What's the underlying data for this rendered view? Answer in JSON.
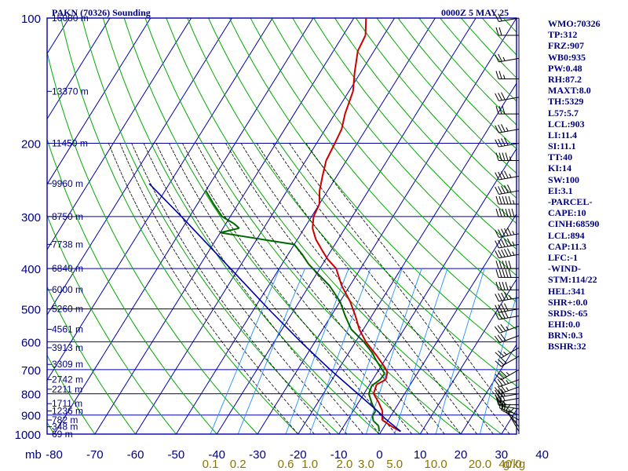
{
  "header": {
    "title": "PAKN (70326) Sounding",
    "valid": "0000Z  5 MAY 25"
  },
  "colors": {
    "frame": "#0000aa",
    "grid": "#0000aa",
    "isotherms": "#0000aa",
    "dry_adiabats": "#00aa00",
    "moist_adiabats": "#000000",
    "mixing_ratio": "#2090ff",
    "temperature": "#cc0000",
    "dewpoint": "#006600",
    "parcel": "#0000aa",
    "axis_text": "#000080",
    "mixing_ratio_text": "#8b7500",
    "wind": "#000000"
  },
  "indices": [
    "WMO:70326",
    "TP:312",
    "FRZ:907",
    "WB0:935",
    "PW:0.48",
    "RH:87.2",
    "MAXT:8.0",
    "TH:5329",
    "L57:5.7",
    "LCL:903",
    "LI:11.4",
    "SI:11.1",
    "TT:40",
    "KI:14",
    "SW:100",
    "EI:3.1",
    "-PARCEL-",
    "CAPE:10",
    "CINH:68590",
    "LCL:894",
    "CAP:11.3",
    "LFC:-1",
    "-WIND-",
    "STM:114/22",
    "HEL:341",
    "SHR+:0.0",
    "SRDS:-65",
    "EHI:0.0",
    "BRN:0.3",
    "BSHR:32"
  ],
  "chart_data": {
    "type": "skew-t",
    "xlabel": "",
    "ylabel": "mb",
    "y_scale": "log",
    "ylim": [
      1000,
      100
    ],
    "xlim": [
      -80,
      0
    ],
    "pressure_ticks": [
      100,
      200,
      300,
      400,
      500,
      600,
      700,
      800,
      900,
      1000
    ],
    "temperature_ticks": [
      -80,
      -70,
      -60,
      -50,
      -40,
      -30,
      -20,
      -10,
      0,
      10,
      20,
      30,
      40
    ],
    "temperature_tick_labels": [
      "-80",
      "-70",
      "-60",
      "-50",
      "-40",
      "-30",
      "-20",
      "-10",
      "0",
      "10",
      "20",
      "30",
      "40"
    ],
    "isotherm_step": 10,
    "mixing_ratio_labels": [
      {
        "label": "0.1",
        "value": 0.1
      },
      {
        "label": "0.2",
        "value": 0.2
      },
      {
        "label": "0.6",
        "value": 0.6
      },
      {
        "label": "1.0",
        "value": 1.0
      },
      {
        "label": "2.0",
        "value": 2.0
      },
      {
        "label": "3.0",
        "value": 3.0
      },
      {
        "label": "5.0",
        "value": 5.0
      },
      {
        "label": "10.0",
        "value": 10.0
      },
      {
        "label": "20.0",
        "value": 20.0
      },
      {
        "label": "40.0",
        "value": 40.0
      }
    ],
    "mixing_ratio_unit": "g/kg",
    "heights": [
      {
        "p": 1000,
        "label": "69 m"
      },
      {
        "p": 960,
        "label": "348 m"
      },
      {
        "p": 925,
        "label": "782 m"
      },
      {
        "p": 880,
        "label": "1236 m"
      },
      {
        "p": 845,
        "label": "1711 m"
      },
      {
        "p": 780,
        "label": "2211 m"
      },
      {
        "p": 740,
        "label": "2742 m"
      },
      {
        "p": 680,
        "label": "3309 m"
      },
      {
        "p": 620,
        "label": "3913 m"
      },
      {
        "p": 560,
        "label": "4561 m"
      },
      {
        "p": 500,
        "label": "5260 m"
      },
      {
        "p": 450,
        "label": "6000 m"
      },
      {
        "p": 400,
        "label": "6840 m"
      },
      {
        "p": 350,
        "label": "7738 m"
      },
      {
        "p": 300,
        "label": "8750 m"
      },
      {
        "p": 250,
        "label": "9960 m"
      },
      {
        "p": 200,
        "label": "11450 m"
      },
      {
        "p": 150,
        "label": "13370 m"
      },
      {
        "p": 100,
        "label": "16080 m"
      }
    ],
    "series": [
      {
        "key": "temperature",
        "points": [
          {
            "p": 985,
            "t": 4.8
          },
          {
            "p": 960,
            "t": 2.0
          },
          {
            "p": 925,
            "t": -1.5
          },
          {
            "p": 880,
            "t": -2.8
          },
          {
            "p": 840,
            "t": -5.0
          },
          {
            "p": 800,
            "t": -7.6
          },
          {
            "p": 760,
            "t": -8.3
          },
          {
            "p": 740,
            "t": -6.8
          },
          {
            "p": 710,
            "t": -7.5
          },
          {
            "p": 690,
            "t": -9.0
          },
          {
            "p": 650,
            "t": -12.5
          },
          {
            "p": 600,
            "t": -17.5
          },
          {
            "p": 560,
            "t": -21.0
          },
          {
            "p": 520,
            "t": -24.0
          },
          {
            "p": 480,
            "t": -27.5
          },
          {
            "p": 440,
            "t": -32.0
          },
          {
            "p": 400,
            "t": -36.0
          },
          {
            "p": 380,
            "t": -39.5
          },
          {
            "p": 360,
            "t": -42.5
          },
          {
            "p": 340,
            "t": -45.5
          },
          {
            "p": 320,
            "t": -48.0
          },
          {
            "p": 300,
            "t": -49.5
          },
          {
            "p": 280,
            "t": -50.0
          },
          {
            "p": 260,
            "t": -52.0
          },
          {
            "p": 240,
            "t": -53.5
          },
          {
            "p": 220,
            "t": -55.0
          },
          {
            "p": 200,
            "t": -55.5
          },
          {
            "p": 185,
            "t": -56.0
          },
          {
            "p": 170,
            "t": -57.5
          },
          {
            "p": 150,
            "t": -59.0
          },
          {
            "p": 135,
            "t": -61.5
          },
          {
            "p": 120,
            "t": -64.0
          },
          {
            "p": 110,
            "t": -64.5
          },
          {
            "p": 100,
            "t": -67.0
          }
        ]
      },
      {
        "key": "dewpoint",
        "points": [
          {
            "p": 985,
            "t": -0.5
          },
          {
            "p": 955,
            "t": -1.5
          },
          {
            "p": 930,
            "t": -3.5
          },
          {
            "p": 905,
            "t": -4.5
          },
          {
            "p": 880,
            "t": -4.5
          },
          {
            "p": 845,
            "t": -6.5
          },
          {
            "p": 800,
            "t": -8.8
          },
          {
            "p": 765,
            "t": -9.3
          },
          {
            "p": 740,
            "t": -8.2
          },
          {
            "p": 715,
            "t": -8.0
          },
          {
            "p": 690,
            "t": -10.0
          },
          {
            "p": 660,
            "t": -12.5
          },
          {
            "p": 640,
            "t": -14.0
          },
          {
            "p": 600,
            "t": -18.0
          },
          {
            "p": 560,
            "t": -23.0
          },
          {
            "p": 520,
            "t": -26.5
          },
          {
            "p": 480,
            "t": -30.0
          },
          {
            "p": 440,
            "t": -35.0
          },
          {
            "p": 410,
            "t": -40.0
          },
          {
            "p": 390,
            "t": -43.5
          },
          {
            "p": 370,
            "t": -46.5
          },
          {
            "p": 350,
            "t": -50.0
          },
          {
            "p": 340,
            "t": -59.0
          },
          {
            "p": 328,
            "t": -70.0
          },
          {
            "p": 320,
            "t": -66.0
          },
          {
            "p": 312,
            "t": -68.0
          },
          {
            "p": 300,
            "t": -72.0
          },
          {
            "p": 280,
            "t": -76.0
          },
          {
            "p": 260,
            "t": -80.0
          }
        ]
      },
      {
        "key": "parcel",
        "points": [
          {
            "p": 985,
            "t": 4.8
          },
          {
            "p": 920,
            "t": -0.8
          },
          {
            "p": 880,
            "t": -4.0
          },
          {
            "p": 800,
            "t": -11.5
          },
          {
            "p": 700,
            "t": -22.0
          },
          {
            "p": 600,
            "t": -33.5
          },
          {
            "p": 500,
            "t": -46.5
          },
          {
            "p": 400,
            "t": -62.0
          },
          {
            "p": 300,
            "t": -82.0
          },
          {
            "p": 250,
            "t": -95.0
          }
        ]
      }
    ],
    "wind_barbs": [
      {
        "p": 985,
        "dir": 330,
        "spd": 10
      },
      {
        "p": 960,
        "dir": 320,
        "spd": 15
      },
      {
        "p": 925,
        "dir": 300,
        "spd": 20
      },
      {
        "p": 900,
        "dir": 290,
        "spd": 20
      },
      {
        "p": 870,
        "dir": 280,
        "spd": 25
      },
      {
        "p": 850,
        "dir": 270,
        "spd": 25
      },
      {
        "p": 820,
        "dir": 260,
        "spd": 30
      },
      {
        "p": 800,
        "dir": 260,
        "spd": 30
      },
      {
        "p": 770,
        "dir": 250,
        "spd": 35
      },
      {
        "p": 740,
        "dir": 250,
        "spd": 35
      },
      {
        "p": 700,
        "dir": 240,
        "spd": 35
      },
      {
        "p": 650,
        "dir": 240,
        "spd": 30
      },
      {
        "p": 620,
        "dir": 240,
        "spd": 25
      },
      {
        "p": 580,
        "dir": 250,
        "spd": 30
      },
      {
        "p": 550,
        "dir": 250,
        "spd": 35
      },
      {
        "p": 520,
        "dir": 260,
        "spd": 40
      },
      {
        "p": 500,
        "dir": 260,
        "spd": 40
      },
      {
        "p": 470,
        "dir": 260,
        "spd": 45
      },
      {
        "p": 450,
        "dir": 270,
        "spd": 45
      },
      {
        "p": 420,
        "dir": 270,
        "spd": 50
      },
      {
        "p": 400,
        "dir": 270,
        "spd": 50
      },
      {
        "p": 370,
        "dir": 260,
        "spd": 55
      },
      {
        "p": 350,
        "dir": 260,
        "spd": 55
      },
      {
        "p": 330,
        "dir": 260,
        "spd": 55
      },
      {
        "p": 300,
        "dir": 270,
        "spd": 60
      },
      {
        "p": 280,
        "dir": 270,
        "spd": 55
      },
      {
        "p": 260,
        "dir": 260,
        "spd": 50
      },
      {
        "p": 240,
        "dir": 260,
        "spd": 45
      },
      {
        "p": 220,
        "dir": 270,
        "spd": 45
      },
      {
        "p": 200,
        "dir": 260,
        "spd": 40
      },
      {
        "p": 185,
        "dir": 260,
        "spd": 35
      },
      {
        "p": 170,
        "dir": 270,
        "spd": 30
      },
      {
        "p": 155,
        "dir": 260,
        "spd": 30
      },
      {
        "p": 140,
        "dir": 270,
        "spd": 25
      },
      {
        "p": 125,
        "dir": 260,
        "spd": 25
      },
      {
        "p": 110,
        "dir": 270,
        "spd": 20
      },
      {
        "p": 100,
        "dir": 260,
        "spd": 20
      }
    ]
  }
}
